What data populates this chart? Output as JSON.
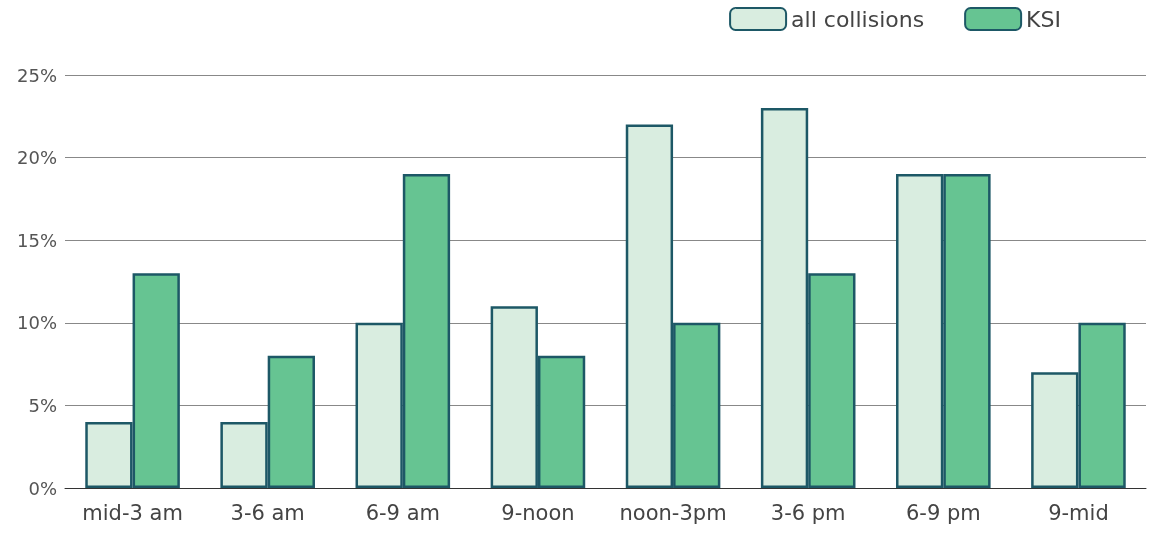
{
  "chart_data": {
    "type": "bar",
    "categories": [
      "mid-3 am",
      "3-6 am",
      "6-9 am",
      "9-noon",
      "noon-3pm",
      "3-6 pm",
      "6-9 pm",
      "9-mid"
    ],
    "series": [
      {
        "name": "all collisions",
        "color": "#d9ede0",
        "values": [
          4,
          4,
          10,
          11,
          22,
          23,
          19,
          7
        ]
      },
      {
        "name": "KSI",
        "color": "#66c492",
        "values": [
          13,
          8,
          19,
          8,
          10,
          13,
          19,
          10
        ]
      }
    ],
    "ylim": [
      0,
      25
    ],
    "yticks": [
      {
        "value": 0,
        "label": "0%"
      },
      {
        "value": 5,
        "label": "5%"
      },
      {
        "value": 10,
        "label": "10%"
      },
      {
        "value": 15,
        "label": "15%"
      },
      {
        "value": 20,
        "label": "20%"
      },
      {
        "value": 25,
        "label": "25%"
      }
    ],
    "grid": "y",
    "legend": "top right"
  }
}
